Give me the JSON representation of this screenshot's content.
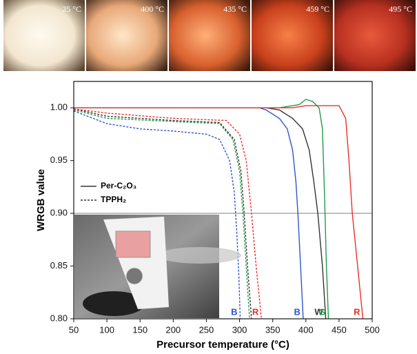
{
  "photo_labels": [
    "25 °C",
    "400 °C",
    "435 °C",
    "459 °C",
    "495 °C"
  ],
  "chart_data": {
    "type": "line",
    "xlabel": "Precursor temperature (°C)",
    "ylabel": "WRGB value",
    "xlim": [
      50,
      500
    ],
    "ylim": [
      0.8,
      1.025
    ],
    "xticks": [
      50,
      100,
      150,
      200,
      250,
      300,
      350,
      400,
      450,
      500
    ],
    "yticks": [
      {
        "value": 0.8,
        "label": "0.80"
      },
      {
        "value": 0.85,
        "label": "0.85"
      },
      {
        "value": 0.9,
        "label": "0.90"
      },
      {
        "value": 0.95,
        "label": "0.95"
      },
      {
        "value": 1.0,
        "label": "1.00"
      }
    ],
    "hline": 0.9,
    "legend": [
      {
        "label": "Per-C₂O₃",
        "dashed": false
      },
      {
        "label": "TPPH₂",
        "dashed": true
      }
    ],
    "series": [
      {
        "label": "B",
        "color": "#2f55c8",
        "dashed": false,
        "x": [
          50,
          330,
          340,
          360,
          372,
          380,
          385,
          388,
          392,
          396
        ],
        "values": [
          1.0,
          1.0,
          0.998,
          0.99,
          0.98,
          0.96,
          0.93,
          0.9,
          0.85,
          0.8
        ]
      },
      {
        "label": "W",
        "color": "#333333",
        "dashed": false,
        "x": [
          50,
          340,
          360,
          380,
          395,
          405,
          412,
          418,
          425,
          430
        ],
        "values": [
          1.0,
          1.0,
          0.998,
          0.99,
          0.98,
          0.96,
          0.93,
          0.9,
          0.85,
          0.8
        ]
      },
      {
        "label": "G",
        "color": "#1e9a4a",
        "dashed": false,
        "x": [
          50,
          360,
          390,
          400,
          410,
          420,
          425,
          428,
          431,
          434
        ],
        "values": [
          1.0,
          1.0,
          1.003,
          1.008,
          1.006,
          1.0,
          0.98,
          0.92,
          0.85,
          0.8
        ]
      },
      {
        "label": "R",
        "color": "#e8302a",
        "dashed": false,
        "x": [
          50,
          380,
          400,
          450,
          460,
          465,
          470,
          478,
          486
        ],
        "values": [
          1.0,
          1.0,
          1.002,
          1.002,
          0.99,
          0.95,
          0.9,
          0.85,
          0.8
        ]
      },
      {
        "label": "B",
        "color": "#2f55c8",
        "dashed": true,
        "x": [
          50,
          100,
          150,
          200,
          250,
          270,
          285,
          292,
          296,
          299,
          301
        ],
        "values": [
          0.997,
          0.985,
          0.98,
          0.978,
          0.975,
          0.97,
          0.95,
          0.92,
          0.88,
          0.84,
          0.8
        ]
      },
      {
        "color": "#1e9a4a",
        "dashed": true,
        "x": [
          50,
          100,
          200,
          270,
          290,
          300,
          305,
          310,
          315
        ],
        "values": [
          0.998,
          0.99,
          0.987,
          0.985,
          0.97,
          0.94,
          0.9,
          0.85,
          0.8
        ]
      },
      {
        "color": "#333333",
        "dashed": true,
        "x": [
          50,
          100,
          200,
          270,
          292,
          302,
          307,
          312,
          318
        ],
        "values": [
          0.999,
          0.992,
          0.988,
          0.986,
          0.97,
          0.94,
          0.9,
          0.85,
          0.8
        ]
      },
      {
        "label": "R",
        "color": "#e8302a",
        "dashed": true,
        "x": [
          50,
          100,
          200,
          280,
          300,
          310,
          318,
          325,
          333
        ],
        "values": [
          0.999,
          0.995,
          0.99,
          0.988,
          0.975,
          0.95,
          0.9,
          0.85,
          0.8
        ]
      }
    ]
  }
}
